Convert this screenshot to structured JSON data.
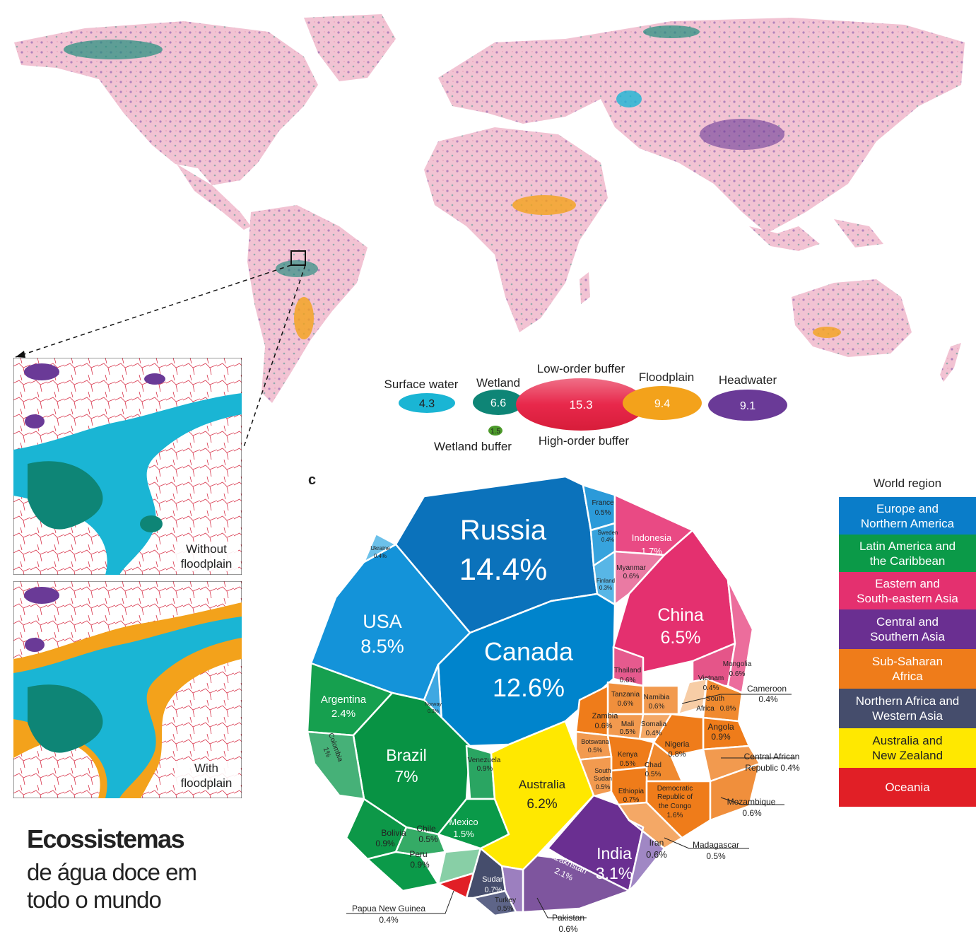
{
  "colors": {
    "europe_na": "#0a7dc9",
    "latin_america": "#0b9a48",
    "east_asia": "#e4306f",
    "central_asia": "#6a2f91",
    "subsaharan": "#ef7c1a",
    "n_africa": "#454d6c",
    "australia": "#ffe800",
    "oceania": "#e11f26",
    "surface_water": "#1ab5d4",
    "wetland": "#0e8576",
    "floodplain": "#f3a21b",
    "headwater": "#6a3a97",
    "wetland_buffer": "#4c9a2a",
    "buffer": "#e8284b"
  },
  "categories": {
    "surface_water": {
      "label": "Surface water",
      "value": "4.3"
    },
    "wetland": {
      "label": "Wetland",
      "value": "6.6"
    },
    "low_order": {
      "label": "Low-order buffer",
      "value": "15.3"
    },
    "high_order": {
      "label": "High-order buffer"
    },
    "floodplain": {
      "label": "Floodplain",
      "value": "9.4"
    },
    "headwater": {
      "label": "Headwater",
      "value": "9.1"
    },
    "wetland_buffer": {
      "label": "Wetland buffer",
      "value": "1.5"
    }
  },
  "insets": {
    "without": "Without floodplain",
    "with": "With floodplain"
  },
  "panel_letter": "c",
  "heading": {
    "bold": "Ecossistemas",
    "line1": "de água doce em",
    "line2": "todo o mundo"
  },
  "legend": {
    "title": "World region",
    "items": [
      {
        "line1": "Europe and",
        "line2": "Northern America"
      },
      {
        "line1": "Latin America and",
        "line2": "the Caribbean"
      },
      {
        "line1": "Eastern and",
        "line2": "South-eastern Asia"
      },
      {
        "line1": "Central and",
        "line2": "Southern Asia"
      },
      {
        "line1": "Sub-Saharan",
        "line2": "Africa"
      },
      {
        "line1": "Northern Africa and",
        "line2": "Western Asia"
      },
      {
        "line1": "Australia and",
        "line2": "New Zealand"
      },
      {
        "line1": "Oceania",
        "line2": ""
      }
    ]
  },
  "countries": {
    "russia": {
      "name": "Russia",
      "pct": "14.4%"
    },
    "canada": {
      "name": "Canada",
      "pct": "12.6%"
    },
    "usa": {
      "name": "USA",
      "pct": "8.5%"
    },
    "brazil": {
      "name": "Brazil",
      "pct": "7%"
    },
    "china": {
      "name": "China",
      "pct": "6.5%"
    },
    "australia": {
      "name": "Australia",
      "pct": "6.2%"
    },
    "india": {
      "name": "India",
      "pct": "3.1%"
    },
    "argentina": {
      "name": "Argentina",
      "pct": "2.4%"
    },
    "kazakhstan": {
      "name": "Kazakhstan",
      "pct": "2.1%"
    },
    "indonesia": {
      "name": "Indonesia",
      "pct": "1.7%"
    },
    "drc": {
      "line1": "Democratic",
      "line2": "Republic of",
      "line3": "the Congo",
      "pct": "1.6%"
    },
    "mexico": {
      "name": "Mexico",
      "pct": "1.5%"
    },
    "colombia": {
      "name": "Colombia",
      "pct": "1%"
    },
    "venezuela": {
      "name": "Venezuela",
      "pct": "0.9%"
    },
    "bolivia": {
      "name": "Bolivia",
      "pct": "0.9%"
    },
    "peru": {
      "name": "Peru",
      "pct": "0.9%"
    },
    "angola": {
      "name": "Angola",
      "pct": "0.9%"
    },
    "nigeria": {
      "name": "Nigeria",
      "pct": "0.8%"
    },
    "south_africa": {
      "line1": "South",
      "line2": "Africa",
      "pct": "0.8%"
    },
    "sudan": {
      "name": "Sudan",
      "pct": "0.7%"
    },
    "ethiopia": {
      "name": "Ethiopia",
      "pct": "0.7%"
    },
    "iran": {
      "name": "Iran",
      "pct": "0.6%"
    },
    "thailand": {
      "name": "Thailand",
      "pct": "0.6%"
    },
    "mongolia": {
      "name": "Mongolia",
      "pct": "0.6%"
    },
    "myanmar": {
      "name": "Myanmar",
      "pct": "0.6%"
    },
    "tanzania": {
      "name": "Tanzania",
      "pct": "0.6%"
    },
    "namibia": {
      "name": "Namibia",
      "pct": "0.6%"
    },
    "zambia": {
      "name": "Zambia",
      "pct": "0.6%"
    },
    "chile": {
      "name": "Chile",
      "pct": "0.5%"
    },
    "france": {
      "name": "France",
      "pct": "0.5%"
    },
    "mali": {
      "name": "Mali",
      "pct": "0.5%"
    },
    "botswana": {
      "name": "Botswana",
      "pct": "0.5%"
    },
    "kenya": {
      "name": "Kenya",
      "pct": "0.5%"
    },
    "chad": {
      "name": "Chad",
      "pct": "0.5%"
    },
    "south_sudan": {
      "line1": "South",
      "line2": "Sudan",
      "pct": "0.5%"
    },
    "turkey": {
      "name": "Turkey",
      "pct": "0.5%"
    },
    "ukraine": {
      "name": "Ukraine",
      "pct": "0.4%"
    },
    "sweden": {
      "name": "Sweden",
      "pct": "0.4%"
    },
    "somalia": {
      "name": "Somalia",
      "pct": "0.4%"
    },
    "vietnam": {
      "name": "Vietnam",
      "pct": "0.4%"
    },
    "finland": {
      "name": "Finland",
      "pct": "0.3%"
    },
    "norway": {
      "name": "Norway",
      "pct": "0.3%"
    }
  },
  "callouts": {
    "cameroon": {
      "name": "Cameroon",
      "pct": "0.4%"
    },
    "car": {
      "name": "Central African",
      "pct": "Republic 0.4%"
    },
    "mozambique": {
      "name": "Mozambique",
      "pct": "0.6%"
    },
    "madagascar": {
      "name": "Madagascar",
      "pct": "0.5%"
    },
    "pakistan": {
      "name": "Pakistan",
      "pct": "0.6%"
    },
    "png": {
      "name": "Papua New Guinea",
      "pct": "0.4%"
    }
  }
}
